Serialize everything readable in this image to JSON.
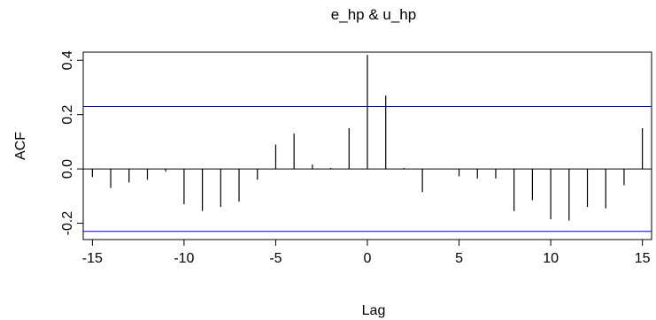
{
  "chart_data": {
    "type": "bar",
    "title": "e_hp & u_hp",
    "xlabel": "Lag",
    "ylabel": "ACF",
    "xlim": [
      -15.5,
      15.5
    ],
    "ylim": [
      -0.26,
      0.43
    ],
    "x_ticks": [
      -15,
      -10,
      -5,
      0,
      5,
      10,
      15
    ],
    "x_tick_labels": [
      "-15",
      "-10",
      "-5",
      "0",
      "5",
      "10",
      "15"
    ],
    "y_ticks": [
      -0.2,
      0.0,
      0.2,
      0.4
    ],
    "y_tick_labels": [
      "-0.2",
      "0.0",
      "0.2",
      "0.4"
    ],
    "grid": false,
    "zero_line": true,
    "confidence_bounds": [
      0.23,
      -0.23
    ],
    "colors": {
      "spikes": "#000000",
      "bounds": "#0000cc",
      "frame": "#000000"
    },
    "lags": [
      -15,
      -14,
      -13,
      -12,
      -11,
      -10,
      -9,
      -8,
      -7,
      -6,
      -5,
      -4,
      -3,
      -2,
      -1,
      0,
      1,
      2,
      3,
      4,
      5,
      6,
      7,
      8,
      9,
      10,
      11,
      12,
      13,
      14,
      15
    ],
    "values": [
      -0.03,
      -0.07,
      -0.05,
      -0.04,
      -0.01,
      -0.13,
      -0.155,
      -0.14,
      -0.12,
      -0.04,
      0.09,
      0.13,
      0.016,
      0.004,
      0.15,
      0.42,
      0.27,
      0.004,
      -0.085,
      0.0,
      -0.027,
      -0.035,
      -0.035,
      -0.155,
      -0.115,
      -0.185,
      -0.19,
      -0.14,
      -0.145,
      -0.06,
      0.15
    ]
  }
}
